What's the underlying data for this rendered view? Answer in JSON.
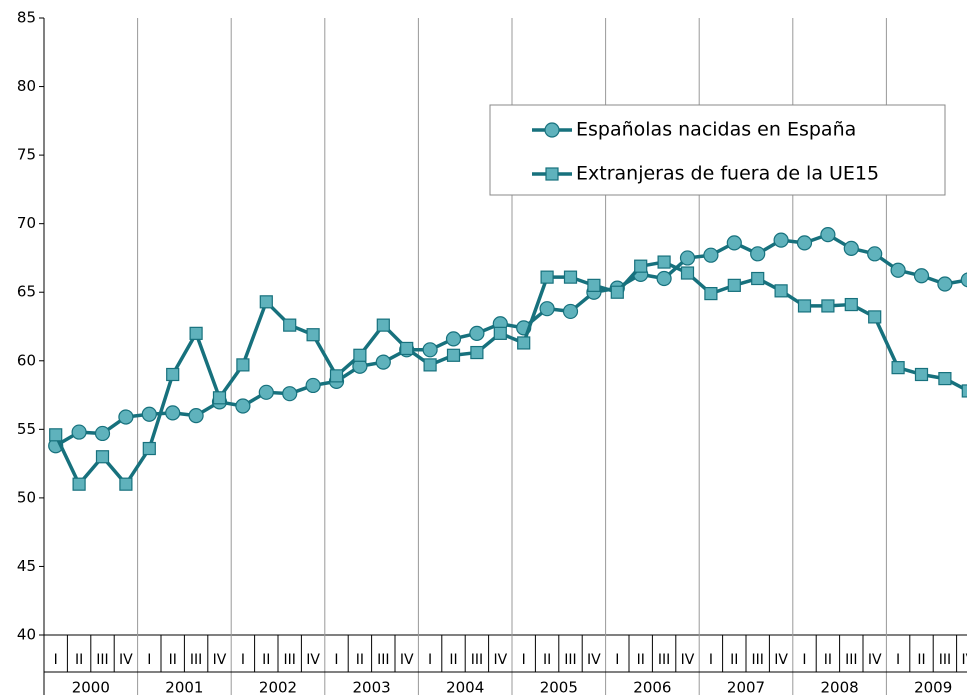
{
  "chart_data": {
    "type": "line",
    "categories": [
      "I",
      "II",
      "III",
      "IV",
      "I",
      "II",
      "III",
      "IV",
      "I",
      "II",
      "III",
      "IV",
      "I",
      "II",
      "III",
      "IV",
      "I",
      "II",
      "III",
      "IV",
      "I",
      "II",
      "III",
      "IV",
      "I",
      "II",
      "III",
      "IV",
      "I",
      "II",
      "III",
      "IV",
      "I",
      "II",
      "III",
      "IV",
      "I",
      "II",
      "III",
      "IV"
    ],
    "groups": [
      "2000",
      "2001",
      "2002",
      "2003",
      "2004",
      "2005",
      "2006",
      "2007",
      "2008",
      "2009"
    ],
    "series": [
      {
        "name": "Españolas nacidas en España",
        "color": "#17717d",
        "marker_color": "#5fb2bc",
        "marker": "circle",
        "values": [
          53.8,
          54.8,
          54.7,
          55.9,
          56.1,
          56.2,
          56.0,
          57.0,
          56.7,
          57.7,
          57.6,
          58.2,
          58.5,
          59.6,
          59.9,
          60.8,
          60.8,
          61.6,
          62.0,
          62.7,
          62.4,
          63.8,
          63.6,
          65.0,
          65.3,
          66.3,
          66.0,
          67.5,
          67.7,
          68.6,
          67.8,
          68.8,
          68.6,
          69.2,
          68.2,
          67.8,
          66.6,
          66.2,
          65.6,
          65.9
        ]
      },
      {
        "name": "Extranjeras de fuera de la UE15",
        "color": "#17717d",
        "marker_color": "#5fb2bc",
        "marker": "square",
        "values": [
          54.6,
          51.0,
          53.0,
          51.0,
          53.6,
          59.0,
          62.0,
          57.3,
          59.7,
          64.3,
          62.6,
          61.9,
          58.9,
          60.4,
          62.6,
          60.9,
          59.7,
          60.4,
          60.6,
          62.0,
          61.3,
          66.1,
          66.1,
          65.5,
          65.0,
          66.9,
          67.2,
          66.4,
          64.9,
          65.5,
          66.0,
          65.1,
          64.0,
          64.0,
          64.1,
          63.2,
          59.5,
          59.0,
          58.7,
          57.8
        ]
      }
    ],
    "ylim": [
      40,
      85
    ],
    "yticks": [
      40,
      45,
      50,
      55,
      60,
      65,
      70,
      75,
      80,
      85
    ],
    "grid": false,
    "legend": "upper right"
  }
}
